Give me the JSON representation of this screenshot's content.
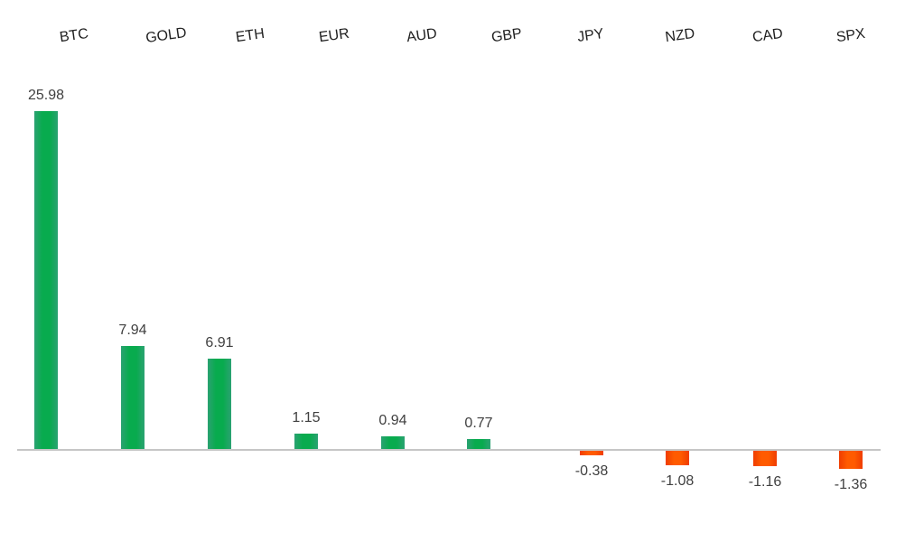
{
  "chart_data": {
    "type": "bar",
    "categories": [
      "BTC",
      "GOLD",
      "ETH",
      "EUR",
      "AUD",
      "GBP",
      "JPY",
      "NZD",
      "CAD",
      "SPX"
    ],
    "values": [
      25.98,
      7.94,
      6.91,
      1.15,
      0.94,
      0.77,
      -0.38,
      -1.08,
      -1.16,
      -1.36
    ],
    "value_labels": [
      "25.98",
      "7.94",
      "6.91",
      "1.15",
      "0.94",
      "0.77",
      "-0.38",
      "-1.08",
      "-1.16",
      "-1.36"
    ],
    "title": "",
    "xlabel": "",
    "ylabel": "",
    "ylim": [
      -2,
      27
    ],
    "grid": false,
    "legend": "none",
    "orientation": "vertical",
    "category_label_position": "top",
    "category_label_rotation_deg": -8,
    "positive_color": "#08ab4e",
    "negative_color": "#ff5b00",
    "axis_line_color": "#c6c6c6",
    "value_label_color": "#404040",
    "category_label_color": "#1f1f1f",
    "background_color": "#ffffff"
  }
}
